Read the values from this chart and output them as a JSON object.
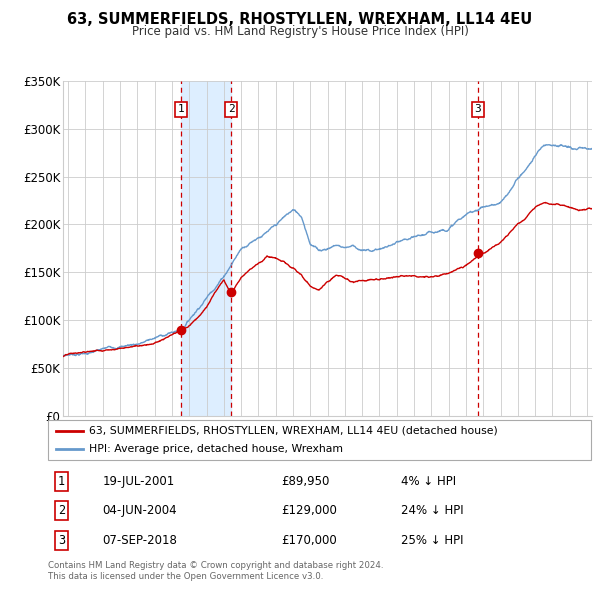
{
  "title": "63, SUMMERFIELDS, RHOSTYLLEN, WREXHAM, LL14 4EU",
  "subtitle": "Price paid vs. HM Land Registry's House Price Index (HPI)",
  "legend_label_red": "63, SUMMERFIELDS, RHOSTYLLEN, WREXHAM, LL14 4EU (detached house)",
  "legend_label_blue": "HPI: Average price, detached house, Wrexham",
  "footer1": "Contains HM Land Registry data © Crown copyright and database right 2024.",
  "footer2": "This data is licensed under the Open Government Licence v3.0.",
  "transactions": [
    {
      "num": 1,
      "date": "19-JUL-2001",
      "price": 89950,
      "price_str": "£89,950",
      "pct": "4%",
      "dir": "↓"
    },
    {
      "num": 2,
      "date": "04-JUN-2004",
      "price": 129000,
      "price_str": "£129,000",
      "pct": "24%",
      "dir": "↓"
    },
    {
      "num": 3,
      "date": "07-SEP-2018",
      "price": 170000,
      "price_str": "£170,000",
      "pct": "25%",
      "dir": "↓"
    }
  ],
  "transaction_dates_decimal": [
    2001.543,
    2004.422,
    2018.678
  ],
  "transaction_prices": [
    89950,
    129000,
    170000
  ],
  "shade_start": 2001.543,
  "shade_end": 2004.422,
  "ylim": [
    0,
    350000
  ],
  "yticks": [
    0,
    50000,
    100000,
    150000,
    200000,
    250000,
    300000,
    350000
  ],
  "ytick_labels": [
    "£0",
    "£50K",
    "£100K",
    "£150K",
    "£200K",
    "£250K",
    "£300K",
    "£350K"
  ],
  "xlim_start": 1994.7,
  "xlim_end": 2025.3,
  "xticks": [
    1995,
    1996,
    1997,
    1998,
    1999,
    2000,
    2001,
    2002,
    2003,
    2004,
    2005,
    2006,
    2007,
    2008,
    2009,
    2010,
    2011,
    2012,
    2013,
    2014,
    2015,
    2016,
    2017,
    2018,
    2019,
    2020,
    2021,
    2022,
    2023,
    2024,
    2025
  ],
  "background_color": "#ffffff",
  "grid_color": "#cccccc",
  "red_color": "#cc0000",
  "blue_color": "#6699cc",
  "shade_color": "#ddeeff",
  "hpi_anchors": [
    [
      1994.7,
      63000
    ],
    [
      1995,
      64500
    ],
    [
      1996,
      67000
    ],
    [
      1997,
      70000
    ],
    [
      1998,
      74000
    ],
    [
      1999,
      78000
    ],
    [
      2000,
      84000
    ],
    [
      2001,
      90000
    ],
    [
      2001.54,
      93000
    ],
    [
      2002,
      105000
    ],
    [
      2003,
      130000
    ],
    [
      2004,
      155000
    ],
    [
      2004.5,
      170000
    ],
    [
      2005,
      185000
    ],
    [
      2006,
      200000
    ],
    [
      2007,
      210000
    ],
    [
      2007.5,
      218000
    ],
    [
      2008,
      225000
    ],
    [
      2008.5,
      218000
    ],
    [
      2009,
      192000
    ],
    [
      2009.5,
      185000
    ],
    [
      2010,
      188000
    ],
    [
      2010.5,
      192000
    ],
    [
      2011,
      190000
    ],
    [
      2011.5,
      193000
    ],
    [
      2012,
      188000
    ],
    [
      2012.5,
      187000
    ],
    [
      2013,
      190000
    ],
    [
      2013.5,
      192000
    ],
    [
      2014,
      195000
    ],
    [
      2015,
      196000
    ],
    [
      2016,
      200000
    ],
    [
      2017,
      207000
    ],
    [
      2017.5,
      215000
    ],
    [
      2018,
      220000
    ],
    [
      2018.5,
      225000
    ],
    [
      2018.67,
      227000
    ],
    [
      2019,
      230000
    ],
    [
      2019.5,
      232000
    ],
    [
      2020,
      233000
    ],
    [
      2020.5,
      242000
    ],
    [
      2021,
      258000
    ],
    [
      2021.5,
      268000
    ],
    [
      2022,
      282000
    ],
    [
      2022.5,
      293000
    ],
    [
      2023,
      296000
    ],
    [
      2023.5,
      295000
    ],
    [
      2024,
      291000
    ],
    [
      2024.5,
      289000
    ],
    [
      2025.3,
      287000
    ]
  ],
  "red_anchors": [
    [
      1994.7,
      62000
    ],
    [
      1995,
      63500
    ],
    [
      1996,
      65000
    ],
    [
      1997,
      68000
    ],
    [
      1998,
      72000
    ],
    [
      1999,
      75000
    ],
    [
      2000,
      80000
    ],
    [
      2001.0,
      87000
    ],
    [
      2001.54,
      89950
    ],
    [
      2002,
      95000
    ],
    [
      2003,
      115000
    ],
    [
      2004.0,
      145000
    ],
    [
      2004.42,
      129000
    ],
    [
      2005,
      148000
    ],
    [
      2005.5,
      158000
    ],
    [
      2006,
      165000
    ],
    [
      2006.5,
      172000
    ],
    [
      2007,
      170000
    ],
    [
      2007.5,
      165000
    ],
    [
      2008,
      158000
    ],
    [
      2008.5,
      150000
    ],
    [
      2009,
      138000
    ],
    [
      2009.5,
      135000
    ],
    [
      2010,
      142000
    ],
    [
      2010.5,
      148000
    ],
    [
      2011,
      144000
    ],
    [
      2011.5,
      141000
    ],
    [
      2012,
      143000
    ],
    [
      2012.5,
      145000
    ],
    [
      2013,
      147000
    ],
    [
      2013.5,
      148000
    ],
    [
      2014,
      149000
    ],
    [
      2015,
      150000
    ],
    [
      2016,
      152000
    ],
    [
      2017,
      155000
    ],
    [
      2017.5,
      160000
    ],
    [
      2018.0,
      163000
    ],
    [
      2018.67,
      170000
    ],
    [
      2018.8,
      172000
    ],
    [
      2019,
      173000
    ],
    [
      2019.5,
      178000
    ],
    [
      2020,
      182000
    ],
    [
      2020.5,
      192000
    ],
    [
      2021,
      203000
    ],
    [
      2021.5,
      210000
    ],
    [
      2022,
      220000
    ],
    [
      2022.5,
      225000
    ],
    [
      2023,
      222000
    ],
    [
      2023.5,
      220000
    ],
    [
      2024,
      218000
    ],
    [
      2024.5,
      217000
    ],
    [
      2025.3,
      218000
    ]
  ]
}
